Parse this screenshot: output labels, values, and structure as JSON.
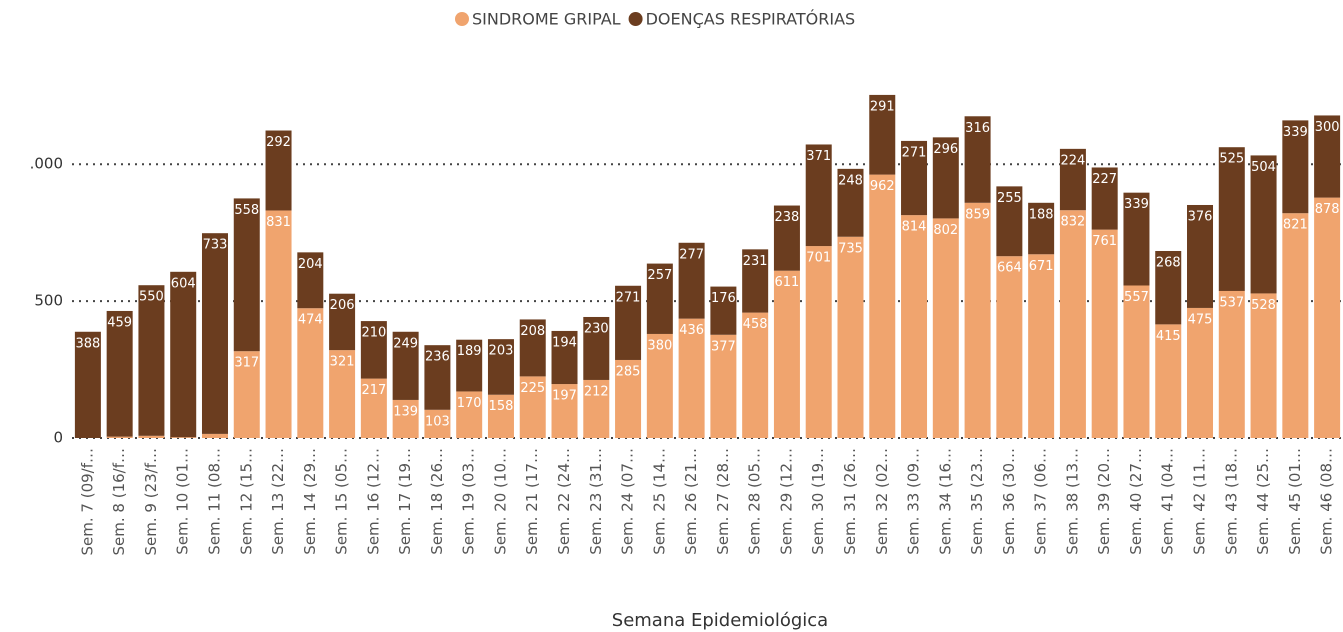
{
  "chart_data": {
    "type": "stacked_bar",
    "x_label": "Semana Epidemiológica",
    "categories": [
      "Sem. 7 (09/f…",
      "Sem. 8 (16/f…",
      "Sem. 9 (23/f…",
      "Sem. 10 (01…",
      "Sem. 11 (08…",
      "Sem. 12 (15…",
      "Sem. 13 (22…",
      "Sem. 14 (29…",
      "Sem. 15 (05…",
      "Sem. 16 (12…",
      "Sem. 17 (19…",
      "Sem. 18 (26…",
      "Sem. 19 (03…",
      "Sem. 20 (10…",
      "Sem. 21 (17…",
      "Sem. 22 (24…",
      "Sem. 23 (31…",
      "Sem. 24 (07…",
      "Sem. 25 (14…",
      "Sem. 26 (21…",
      "Sem. 27 (28…",
      "Sem. 28 (05…",
      "Sem. 29 (12…",
      "Sem. 30 (19…",
      "Sem. 31 (26…",
      "Sem. 32 (02…",
      "Sem. 33 (09…",
      "Sem. 34 (16…",
      "Sem. 35 (23…",
      "Sem. 36 (30…",
      "Sem. 37 (06…",
      "Sem. 38 (13…",
      "Sem. 39 (20…",
      "Sem. 40 (27…",
      "Sem. 41 (04…",
      "Sem. 42 (11…",
      "Sem. 43 (18…",
      "Sem. 44 (25…",
      "Sem. 45 (01…",
      "Sem. 46 (08…"
    ],
    "series": [
      {
        "name": "SINDROME GRIPAL",
        "color": "#f0a46e",
        "values": [
          0,
          5,
          8,
          3,
          15,
          317,
          831,
          474,
          321,
          217,
          139,
          103,
          170,
          158,
          225,
          197,
          212,
          285,
          380,
          436,
          377,
          458,
          611,
          701,
          735,
          962,
          814,
          802,
          859,
          664,
          671,
          832,
          761,
          557,
          415,
          475,
          537,
          528,
          821,
          878
        ]
      },
      {
        "name": "DOENÇAS RESPIRATÓRIAS",
        "color": "#6b3d1f",
        "values": [
          388,
          459,
          550,
          604,
          733,
          558,
          292,
          204,
          206,
          210,
          249,
          236,
          189,
          203,
          208,
          194,
          230,
          271,
          257,
          277,
          176,
          231,
          238,
          371,
          248,
          291,
          271,
          296,
          316,
          255,
          188,
          224,
          227,
          339,
          268,
          376,
          525,
          504,
          339,
          300
        ]
      }
    ],
    "ylim": [
      0,
      1260
    ],
    "yticks": [
      0,
      500,
      {
        "value": 1000,
        "label": ".000"
      }
    ],
    "grid": true,
    "legend": "top"
  }
}
